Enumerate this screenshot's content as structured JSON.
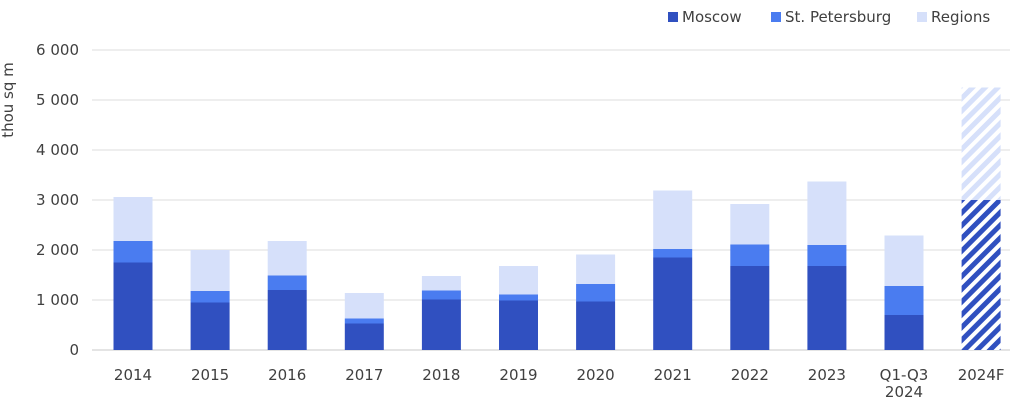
{
  "chart_data": {
    "type": "bar",
    "stacked": true,
    "ylabel": "thou sq m",
    "ylim": [
      0,
      6000
    ],
    "yticks": [
      0,
      1000,
      2000,
      3000,
      4000,
      5000,
      6000
    ],
    "ytick_labels": [
      "0",
      "1 000",
      "2 000",
      "3 000",
      "4 000",
      "5 000",
      "6 000"
    ],
    "grid": true,
    "legend_position": "top-right",
    "categories": [
      [
        "2014"
      ],
      [
        "2015"
      ],
      [
        "2016"
      ],
      [
        "2017"
      ],
      [
        "2018"
      ],
      [
        "2019"
      ],
      [
        "2020"
      ],
      [
        "2021"
      ],
      [
        "2022"
      ],
      [
        "2023"
      ],
      [
        "Q1-Q3",
        "2024"
      ],
      [
        "2024F"
      ]
    ],
    "series": [
      {
        "name": "Moscow",
        "color": "#3050c0",
        "values": [
          1750,
          950,
          1200,
          530,
          1010,
          990,
          970,
          1850,
          1680,
          1680,
          700,
          null
        ]
      },
      {
        "name": "St. Petersburg",
        "color": "#4a7cf0",
        "values": [
          430,
          230,
          290,
          100,
          180,
          120,
          350,
          170,
          430,
          420,
          580,
          null
        ]
      },
      {
        "name": "Regions",
        "color": "#d6e0fa",
        "values": [
          880,
          820,
          690,
          510,
          290,
          570,
          590,
          1170,
          810,
          1270,
          1010,
          null
        ]
      }
    ],
    "forecast": {
      "category_index": 11,
      "segments": [
        {
          "value": 3000,
          "color": "#3050c0"
        },
        {
          "value": 2250,
          "color": "#d6e0fa"
        }
      ]
    }
  }
}
